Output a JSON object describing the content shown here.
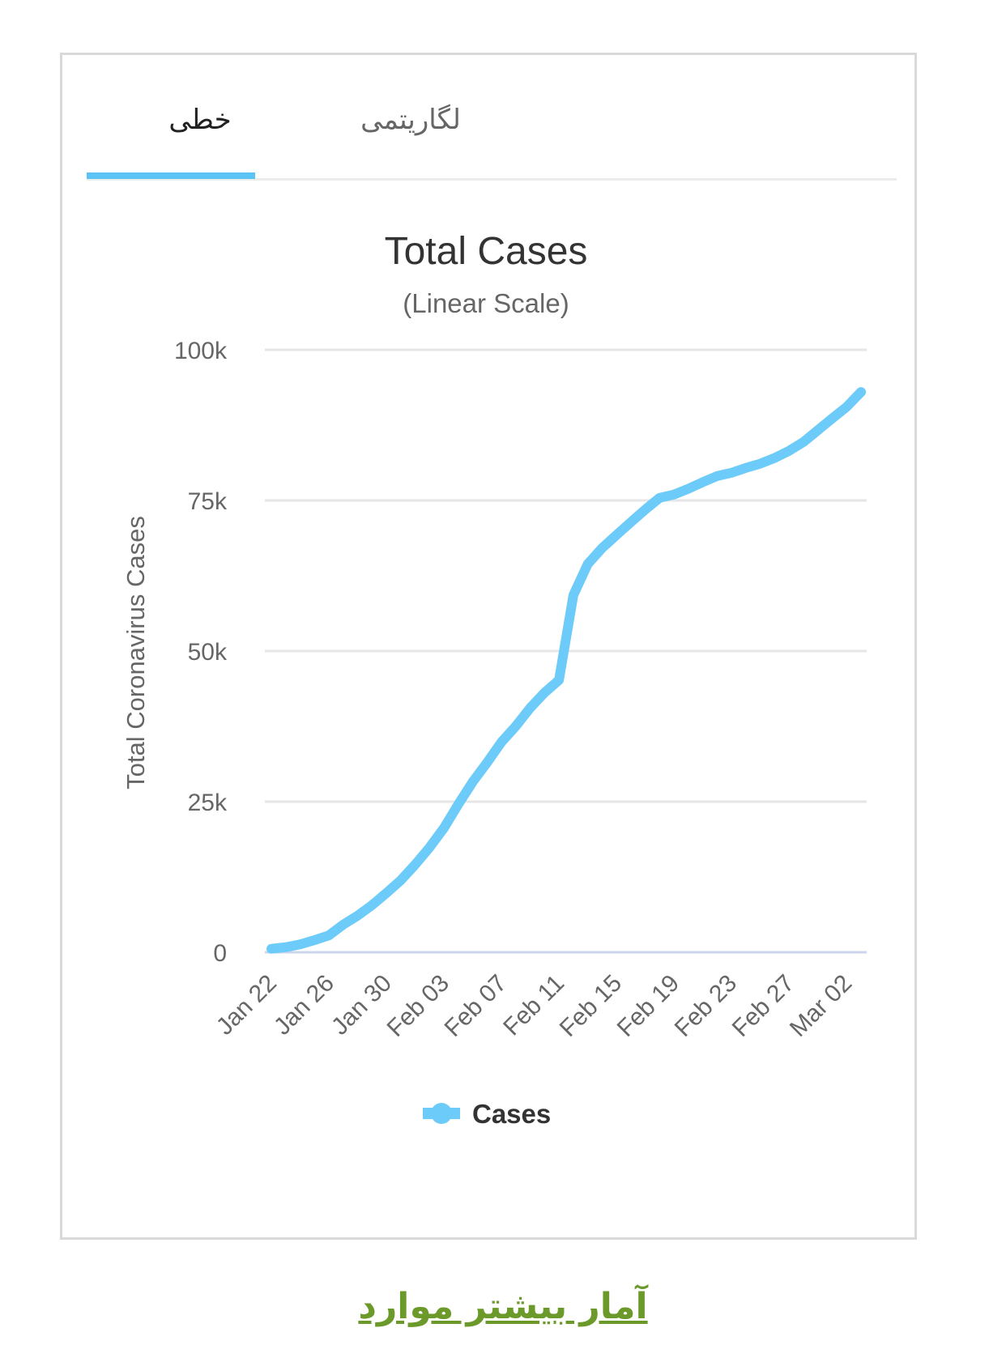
{
  "tabs": {
    "linear_label": "خطی",
    "log_label": "لگاریتمی",
    "active": "linear"
  },
  "more_link": "آمار بیشتر موارد",
  "colors": {
    "series": "#6ccbf8",
    "tab_accent": "#5bc4f5",
    "link": "#6b9a2b"
  },
  "chart_data": {
    "type": "line",
    "title": "Total Cases",
    "subtitle": "(Linear Scale)",
    "xlabel": "",
    "ylabel": "Total Coronavirus Cases",
    "ylim": [
      0,
      100000
    ],
    "yticks": [
      {
        "value": 0,
        "label": "0"
      },
      {
        "value": 25000,
        "label": "25k"
      },
      {
        "value": 50000,
        "label": "50k"
      },
      {
        "value": 75000,
        "label": "75k"
      },
      {
        "value": 100000,
        "label": "100k"
      }
    ],
    "xticks": [
      {
        "index": 0,
        "label": "Jan 22"
      },
      {
        "index": 4,
        "label": "Jan 26"
      },
      {
        "index": 8,
        "label": "Jan 30"
      },
      {
        "index": 12,
        "label": "Feb 03"
      },
      {
        "index": 16,
        "label": "Feb 07"
      },
      {
        "index": 20,
        "label": "Feb 11"
      },
      {
        "index": 24,
        "label": "Feb 15"
      },
      {
        "index": 28,
        "label": "Feb 19"
      },
      {
        "index": 32,
        "label": "Feb 23"
      },
      {
        "index": 36,
        "label": "Feb 27"
      },
      {
        "index": 40,
        "label": "Mar 02"
      }
    ],
    "legend": "bottom-center",
    "series": [
      {
        "name": "Cases",
        "values": [
          580,
          845,
          1320,
          2015,
          2800,
          4600,
          6070,
          7820,
          9830,
          11950,
          14550,
          17390,
          20630,
          24550,
          28280,
          31480,
          34890,
          37550,
          40560,
          43100,
          45170,
          59290,
          64440,
          67100,
          69260,
          71400,
          73500,
          75430,
          75980,
          76940,
          78040,
          79040,
          79600,
          80400,
          81100,
          82050,
          83240,
          84700,
          86650,
          88620,
          90520,
          93000
        ]
      }
    ]
  }
}
